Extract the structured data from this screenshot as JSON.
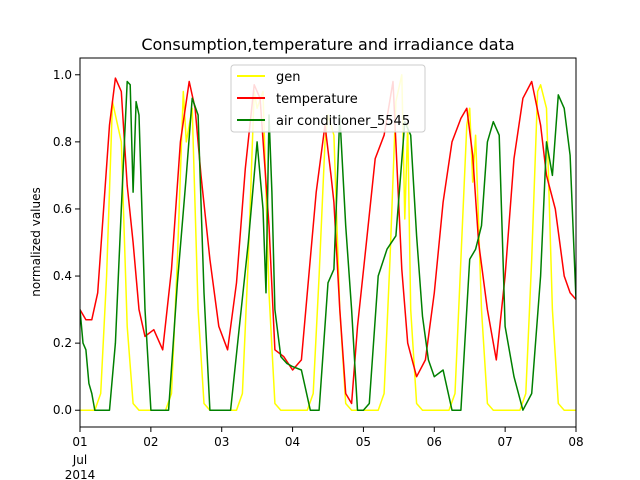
{
  "chart_data": {
    "type": "line",
    "title": "Consumption,temperature and irradiance data",
    "xlabel": "",
    "ylabel": "normalized values",
    "xlim": [
      "2014-07-01",
      "2014-07-08"
    ],
    "ylim": [
      -0.05,
      1.05
    ],
    "grid": false,
    "legend_position": "top-center",
    "x_ticks": [
      {
        "value": "2014-07-01",
        "label": "01"
      },
      {
        "value": "2014-07-02",
        "label": "02"
      },
      {
        "value": "2014-07-03",
        "label": "03"
      },
      {
        "value": "2014-07-04",
        "label": "04"
      },
      {
        "value": "2014-07-05",
        "label": "05"
      },
      {
        "value": "2014-07-06",
        "label": "06"
      },
      {
        "value": "2014-07-07",
        "label": "07"
      },
      {
        "value": "2014-07-08",
        "label": "08"
      }
    ],
    "x_sublabels": [
      "Jul",
      "2014"
    ],
    "y_ticks": [
      0.0,
      0.2,
      0.4,
      0.6,
      0.8,
      1.0
    ],
    "y_tick_labels": [
      "0.0",
      "0.2",
      "0.4",
      "0.6",
      "0.8",
      "1.0"
    ],
    "series": [
      {
        "name": "gen",
        "color": "#ffff00",
        "x": [
          "2014-07-01 00:00",
          "2014-07-01 05:00",
          "2014-07-01 07:00",
          "2014-07-01 09:00",
          "2014-07-01 11:00",
          "2014-07-01 12:00",
          "2014-07-01 14:00",
          "2014-07-01 16:00",
          "2014-07-01 18:00",
          "2014-07-01 20:00",
          "2014-07-02 05:00",
          "2014-07-02 07:00",
          "2014-07-02 09:00",
          "2014-07-02 11:00",
          "2014-07-02 12:00",
          "2014-07-02 14:00",
          "2014-07-02 16:00",
          "2014-07-02 18:00",
          "2014-07-02 20:00",
          "2014-07-03 05:00",
          "2014-07-03 07:00",
          "2014-07-03 09:00",
          "2014-07-03 11:00",
          "2014-07-03 12:00",
          "2014-07-03 14:00",
          "2014-07-03 16:00",
          "2014-07-03 18:00",
          "2014-07-03 20:00",
          "2014-07-04 05:00",
          "2014-07-04 07:00",
          "2014-07-04 09:00",
          "2014-07-04 11:00",
          "2014-07-04 12:00",
          "2014-07-04 14:00",
          "2014-07-04 16:00",
          "2014-07-04 18:00",
          "2014-07-04 20:00",
          "2014-07-05 05:00",
          "2014-07-05 07:00",
          "2014-07-05 09:00",
          "2014-07-05 11:00",
          "2014-07-05 13:00",
          "2014-07-05 14:00",
          "2014-07-05 15:00",
          "2014-07-05 16:00",
          "2014-07-05 18:00",
          "2014-07-05 20:00",
          "2014-07-06 05:00",
          "2014-07-06 07:00",
          "2014-07-06 09:00",
          "2014-07-06 11:00",
          "2014-07-06 12:00",
          "2014-07-06 13:00",
          "2014-07-06 14:00",
          "2014-07-06 16:00",
          "2014-07-06 18:00",
          "2014-07-06 20:00",
          "2014-07-07 05:00",
          "2014-07-07 07:00",
          "2014-07-07 09:00",
          "2014-07-07 11:00",
          "2014-07-07 12:00",
          "2014-07-07 14:00",
          "2014-07-07 16:00",
          "2014-07-07 18:00",
          "2014-07-07 20:00",
          "2014-07-08 00:00"
        ],
        "y": [
          0.0,
          0.0,
          0.05,
          0.4,
          0.92,
          0.88,
          0.8,
          0.25,
          0.02,
          0.0,
          0.0,
          0.05,
          0.45,
          0.95,
          0.8,
          0.9,
          0.3,
          0.02,
          0.0,
          0.0,
          0.05,
          0.45,
          0.95,
          0.9,
          0.95,
          0.35,
          0.02,
          0.0,
          0.0,
          0.05,
          0.4,
          0.8,
          0.88,
          0.82,
          0.3,
          0.02,
          0.0,
          0.0,
          0.05,
          0.45,
          0.92,
          1.0,
          0.57,
          0.85,
          0.3,
          0.02,
          0.0,
          0.0,
          0.05,
          0.45,
          0.85,
          0.9,
          0.68,
          0.82,
          0.3,
          0.02,
          0.0,
          0.0,
          0.05,
          0.45,
          0.95,
          0.97,
          0.9,
          0.3,
          0.02,
          0.0,
          0.0
        ]
      },
      {
        "name": "temperature",
        "color": "#ff0000",
        "x": [
          "2014-07-01 00:00",
          "2014-07-01 02:00",
          "2014-07-01 04:00",
          "2014-07-01 06:00",
          "2014-07-01 08:00",
          "2014-07-01 10:00",
          "2014-07-01 12:00",
          "2014-07-01 14:00",
          "2014-07-01 16:00",
          "2014-07-01 18:00",
          "2014-07-01 20:00",
          "2014-07-01 22:00",
          "2014-07-02 01:00",
          "2014-07-02 04:00",
          "2014-07-02 07:00",
          "2014-07-02 10:00",
          "2014-07-02 13:00",
          "2014-07-02 15:00",
          "2014-07-02 17:00",
          "2014-07-02 20:00",
          "2014-07-02 23:00",
          "2014-07-03 02:00",
          "2014-07-03 05:00",
          "2014-07-03 08:00",
          "2014-07-03 11:00",
          "2014-07-03 13:00",
          "2014-07-03 16:00",
          "2014-07-03 18:00",
          "2014-07-03 21:00",
          "2014-07-04 00:00",
          "2014-07-04 03:00",
          "2014-07-04 05:00",
          "2014-07-04 08:00",
          "2014-07-04 11:00",
          "2014-07-04 13:00",
          "2014-07-04 14:00",
          "2014-07-04 16:00",
          "2014-07-04 18:00",
          "2014-07-04 20:00",
          "2014-07-04 22:00",
          "2014-07-05 01:00",
          "2014-07-05 04:00",
          "2014-07-05 07:00",
          "2014-07-05 10:00",
          "2014-07-05 13:00",
          "2014-07-05 15:00",
          "2014-07-05 18:00",
          "2014-07-05 21:00",
          "2014-07-06 00:00",
          "2014-07-06 03:00",
          "2014-07-06 06:00",
          "2014-07-06 09:00",
          "2014-07-06 11:00",
          "2014-07-06 13:00",
          "2014-07-06 15:00",
          "2014-07-06 18:00",
          "2014-07-06 21:00",
          "2014-07-07 00:00",
          "2014-07-07 03:00",
          "2014-07-07 06:00",
          "2014-07-07 09:00",
          "2014-07-07 12:00",
          "2014-07-07 14:00",
          "2014-07-07 17:00",
          "2014-07-07 20:00",
          "2014-07-07 22:00",
          "2014-07-08 00:00"
        ],
        "y": [
          0.3,
          0.27,
          0.27,
          0.35,
          0.6,
          0.85,
          0.99,
          0.95,
          0.67,
          0.5,
          0.3,
          0.22,
          0.24,
          0.18,
          0.42,
          0.8,
          0.98,
          0.9,
          0.7,
          0.45,
          0.25,
          0.18,
          0.38,
          0.72,
          0.97,
          0.93,
          0.55,
          0.18,
          0.16,
          0.12,
          0.15,
          0.35,
          0.65,
          0.85,
          0.7,
          0.62,
          0.3,
          0.05,
          0.02,
          0.25,
          0.5,
          0.75,
          0.82,
          0.98,
          0.42,
          0.2,
          0.1,
          0.15,
          0.35,
          0.62,
          0.8,
          0.87,
          0.9,
          0.76,
          0.5,
          0.3,
          0.15,
          0.4,
          0.75,
          0.93,
          0.98,
          0.85,
          0.7,
          0.6,
          0.4,
          0.35,
          0.33
        ]
      },
      {
        "name": "air conditioner_5545",
        "color": "#008000",
        "x": [
          "2014-07-01 00:00",
          "2014-07-01 01:00",
          "2014-07-01 02:00",
          "2014-07-01 03:00",
          "2014-07-01 04:00",
          "2014-07-01 05:00",
          "2014-07-01 10:00",
          "2014-07-01 12:00",
          "2014-07-01 14:00",
          "2014-07-01 16:00",
          "2014-07-01 17:00",
          "2014-07-01 18:00",
          "2014-07-01 19:00",
          "2014-07-01 20:00",
          "2014-07-01 22:00",
          "2014-07-02 00:00",
          "2014-07-02 03:00",
          "2014-07-02 06:00",
          "2014-07-02 09:00",
          "2014-07-02 12:00",
          "2014-07-02 14:00",
          "2014-07-02 16:00",
          "2014-07-02 18:00",
          "2014-07-02 20:00",
          "2014-07-02 22:00",
          "2014-07-03 00:00",
          "2014-07-03 03:00",
          "2014-07-03 06:00",
          "2014-07-03 09:00",
          "2014-07-03 12:00",
          "2014-07-03 14:00",
          "2014-07-03 15:00",
          "2014-07-03 16:00",
          "2014-07-03 17:00",
          "2014-07-03 18:00",
          "2014-07-03 20:00",
          "2014-07-03 22:00",
          "2014-07-04 00:00",
          "2014-07-04 03:00",
          "2014-07-04 06:00",
          "2014-07-04 09:00",
          "2014-07-04 12:00",
          "2014-07-04 14:00",
          "2014-07-04 16:00",
          "2014-07-04 18:00",
          "2014-07-04 20:00",
          "2014-07-04 22:00",
          "2014-07-05 00:00",
          "2014-07-05 02:00",
          "2014-07-05 05:00",
          "2014-07-05 08:00",
          "2014-07-05 11:00",
          "2014-07-05 14:00",
          "2014-07-05 16:00",
          "2014-07-05 18:00",
          "2014-07-05 20:00",
          "2014-07-05 22:00",
          "2014-07-06 00:00",
          "2014-07-06 03:00",
          "2014-07-06 06:00",
          "2014-07-06 09:00",
          "2014-07-06 12:00",
          "2014-07-06 14:00",
          "2014-07-06 16:00",
          "2014-07-06 18:00",
          "2014-07-06 20:00",
          "2014-07-06 22:00",
          "2014-07-07 00:00",
          "2014-07-07 03:00",
          "2014-07-07 06:00",
          "2014-07-07 09:00",
          "2014-07-07 12:00",
          "2014-07-07 14:00",
          "2014-07-07 16:00",
          "2014-07-07 18:00",
          "2014-07-07 20:00",
          "2014-07-07 22:00",
          "2014-07-08 00:00"
        ],
        "y": [
          0.3,
          0.2,
          0.18,
          0.08,
          0.05,
          0.0,
          0.0,
          0.2,
          0.6,
          0.98,
          0.97,
          0.65,
          0.92,
          0.88,
          0.3,
          0.0,
          0.0,
          0.0,
          0.38,
          0.7,
          0.93,
          0.88,
          0.35,
          0.0,
          0.0,
          0.0,
          0.0,
          0.25,
          0.5,
          0.8,
          0.6,
          0.35,
          0.88,
          0.65,
          0.3,
          0.16,
          0.14,
          0.13,
          0.12,
          0.0,
          0.0,
          0.38,
          0.42,
          0.88,
          0.55,
          0.3,
          0.0,
          0.0,
          0.02,
          0.4,
          0.48,
          0.52,
          0.86,
          0.82,
          0.52,
          0.28,
          0.15,
          0.1,
          0.12,
          0.0,
          0.0,
          0.45,
          0.48,
          0.55,
          0.8,
          0.86,
          0.82,
          0.25,
          0.1,
          0.0,
          0.05,
          0.4,
          0.8,
          0.7,
          0.94,
          0.9,
          0.76,
          0.33
        ]
      }
    ]
  }
}
